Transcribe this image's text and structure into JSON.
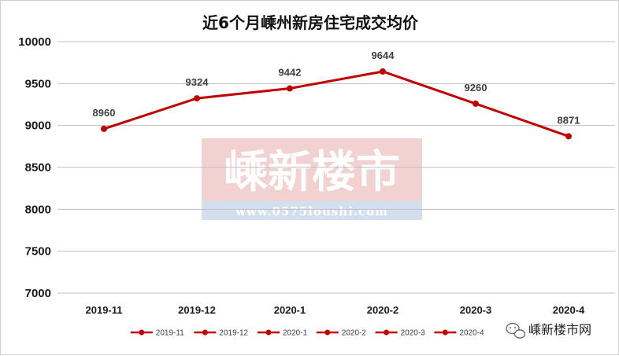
{
  "chart_data": {
    "type": "line",
    "title": "近6个月嵊州新房住宅成交均价",
    "categories": [
      "2019-11",
      "2019-12",
      "2020-1",
      "2020-2",
      "2020-3",
      "2020-4"
    ],
    "series": [
      {
        "values": [
          8960,
          9324,
          9442,
          9644,
          9260,
          8871
        ]
      }
    ],
    "ylim": [
      7000,
      10000
    ],
    "yticks": [
      7000,
      7500,
      8000,
      8500,
      9000,
      9500,
      10000
    ],
    "grid": true,
    "legend_position": "bottom",
    "legend_entries": [
      "2019-11",
      "2019-12",
      "2020-1",
      "2020-2",
      "2020-3",
      "2020-4"
    ],
    "xlabel": "",
    "ylabel": "",
    "colors": {
      "line": "#c00000",
      "grid": "#bfbfbf"
    }
  },
  "watermark": {
    "text": "嵊新楼市",
    "url": "www.0575loushi.com"
  },
  "brand": {
    "icon": "wechat-icon",
    "name": "嵊新楼市网"
  }
}
